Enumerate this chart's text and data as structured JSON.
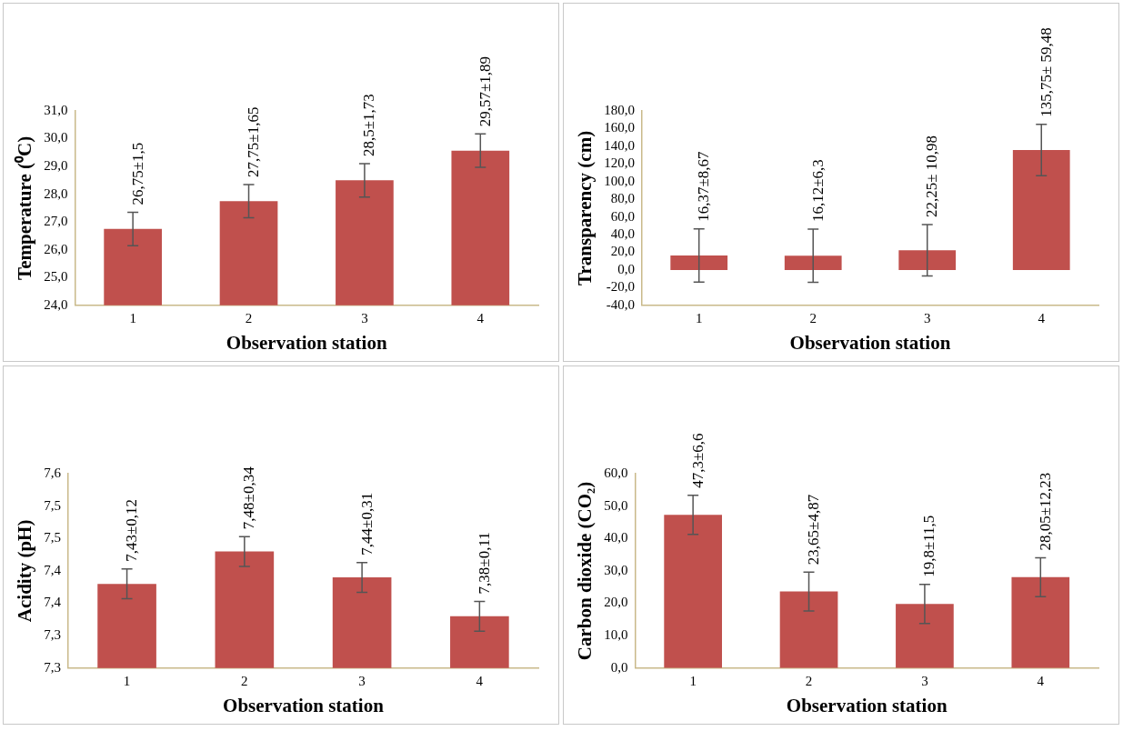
{
  "chart_data": [
    {
      "type": "bar",
      "categories": [
        "1",
        "2",
        "3",
        "4"
      ],
      "values": [
        26.75,
        27.75,
        28.5,
        29.57
      ],
      "errors": [
        0.6,
        0.6,
        0.6,
        0.6
      ],
      "value_labels": [
        "26,75±1,5",
        "27,75±1,65",
        "28,5±1,73",
        "29,57±1,89"
      ],
      "color": "#c0504d",
      "xlabel": "Observation station",
      "ylabel": "Temperature (⁰C)",
      "ylim": [
        24,
        31
      ],
      "yticks": [
        {
          "value": 24,
          "label": "24,0"
        },
        {
          "value": 25,
          "label": "25,0"
        },
        {
          "value": 26,
          "label": "26,0"
        },
        {
          "value": 27,
          "label": "27,0"
        },
        {
          "value": 28,
          "label": "28,0"
        },
        {
          "value": 29,
          "label": "29,0"
        },
        {
          "value": 30,
          "label": "30,0"
        },
        {
          "value": 31,
          "label": "31,0"
        }
      ]
    },
    {
      "type": "bar",
      "categories": [
        "1",
        "2",
        "3",
        "4"
      ],
      "values": [
        16.37,
        16.12,
        22.25,
        135.75
      ],
      "errors": [
        30,
        30,
        29,
        29
      ],
      "value_labels": [
        "16,37±8,67",
        "16,12±6,3",
        "22,25± 10,98",
        "135,75± 59,48"
      ],
      "color": "#c0504d",
      "xlabel": "Observation station",
      "ylabel": "Transparency (cm)",
      "ylim": [
        -40,
        180
      ],
      "yticks": [
        {
          "value": -40,
          "label": "-40,0"
        },
        {
          "value": -20,
          "label": "-20,0"
        },
        {
          "value": 0,
          "label": "0,0"
        },
        {
          "value": 20,
          "label": "20,0"
        },
        {
          "value": 40,
          "label": "40,0"
        },
        {
          "value": 60,
          "label": "60,0"
        },
        {
          "value": 80,
          "label": "80,0"
        },
        {
          "value": 100,
          "label": "100,0"
        },
        {
          "value": 120,
          "label": "120,0"
        },
        {
          "value": 140,
          "label": "140,0"
        },
        {
          "value": 160,
          "label": "160,0"
        },
        {
          "value": 180,
          "label": "180,0"
        }
      ]
    },
    {
      "type": "bar",
      "categories": [
        "1",
        "2",
        "3",
        "4"
      ],
      "values": [
        7.43,
        7.48,
        7.44,
        7.38
      ],
      "errors": [
        0.023,
        0.023,
        0.023,
        0.023
      ],
      "value_labels": [
        "7,43±0,12",
        "7,48±0,34",
        "7,44±0,31",
        "7,38±0,11"
      ],
      "color": "#c0504d",
      "xlabel": "Observation station",
      "ylabel": "Acidity (pH)",
      "ylim": [
        7.3,
        7.6
      ],
      "yticks": [
        {
          "value": 7.3,
          "label": "7,3"
        },
        {
          "value": 7.35,
          "label": "7,3"
        },
        {
          "value": 7.4,
          "label": "7,4"
        },
        {
          "value": 7.45,
          "label": "7,4"
        },
        {
          "value": 7.5,
          "label": "7,5"
        },
        {
          "value": 7.55,
          "label": "7,5"
        },
        {
          "value": 7.6,
          "label": "7,6"
        }
      ]
    },
    {
      "type": "bar",
      "categories": [
        "1",
        "2",
        "3",
        "4"
      ],
      "values": [
        47.3,
        23.65,
        19.8,
        28.05
      ],
      "errors": [
        6,
        6,
        6,
        6
      ],
      "value_labels": [
        "47,3±6,6",
        "23,65±4,87",
        "19,8±11,5",
        "28,05±12,23"
      ],
      "color": "#c0504d",
      "xlabel": "Observation station",
      "ylabel": "Carbon dioxide (CO₂)",
      "ylim": [
        0,
        60
      ],
      "yticks": [
        {
          "value": 0,
          "label": "0,0"
        },
        {
          "value": 10,
          "label": "10,0"
        },
        {
          "value": 20,
          "label": "20,0"
        },
        {
          "value": 30,
          "label": "30,0"
        },
        {
          "value": 40,
          "label": "40,0"
        },
        {
          "value": 50,
          "label": "50,0"
        },
        {
          "value": 60,
          "label": "60,0"
        }
      ]
    }
  ]
}
